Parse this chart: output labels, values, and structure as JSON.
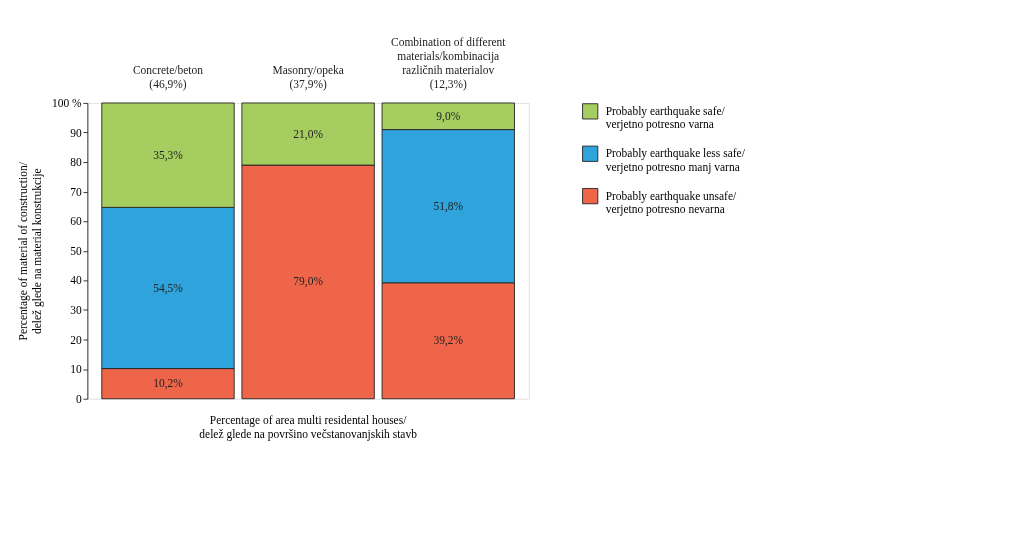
{
  "chart_data": {
    "type": "bar",
    "stacked": true,
    "categories": [
      "Concrete/beton\n(46,9%)",
      "Masonry/opeka\n(37,9%)",
      "Combination of different\nmaterials/kombinacija\nrazličnih materialov\n(12,3%)"
    ],
    "xlabel": "Percentage of area multi residental houses/\ndelež glede na površino večstanovanjskih stavb",
    "ylabel": "Percentage of material of construction/\ndelež glede na material konstrukcije",
    "ylim": [
      0,
      100
    ],
    "yticks": [
      0,
      10,
      20,
      30,
      40,
      50,
      60,
      70,
      80,
      90,
      {
        "value": 100,
        "label": "100 %"
      }
    ],
    "series": [
      {
        "name": "Probably earthquake unsafe/\nverjetno potresno nevarna",
        "color": "#ef6549",
        "values": [
          10.2,
          79.0,
          39.2
        ],
        "value_labels": [
          "10,2%",
          "79,0%",
          "39,2%"
        ]
      },
      {
        "name": "Probably earthquake less safe/\nverjetno potresno manj varna",
        "color": "#2ea3dc",
        "values": [
          54.5,
          null,
          51.8
        ],
        "value_labels": [
          "54,5%",
          null,
          "51,8%"
        ]
      },
      {
        "name": "Probably earthquake safe/\nverjetno potresno varna",
        "color": "#a5cd5f",
        "values": [
          35.3,
          21.0,
          9.0
        ],
        "value_labels": [
          "35,3%",
          "21,0%",
          "9,0%"
        ]
      }
    ],
    "legend": "right",
    "grid": false
  }
}
